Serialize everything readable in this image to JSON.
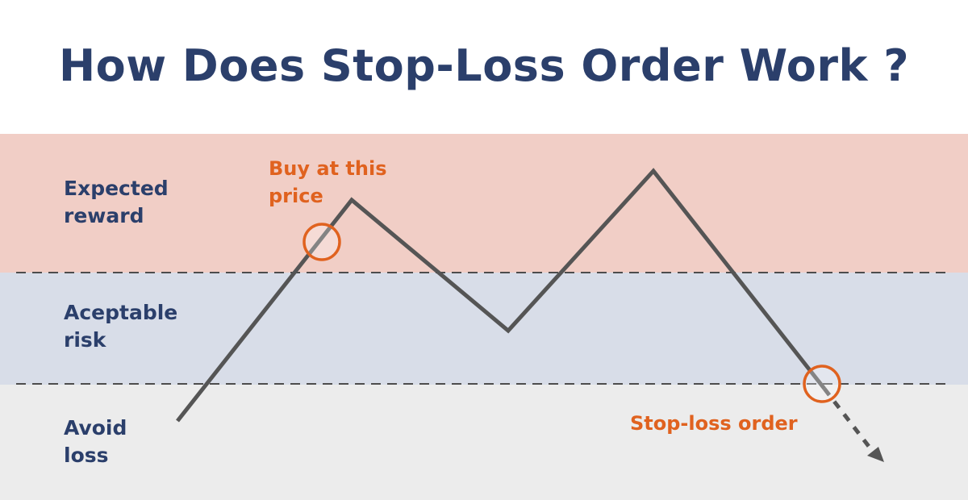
{
  "title": "How Does Stop-Loss Order Work ?",
  "zones": {
    "reward_label": "Expected\nreward",
    "risk_label": "Aceptable\nrisk",
    "loss_label": "Avoid\nloss"
  },
  "annotations": {
    "buy_label": "Buy at this\nprice",
    "stop_loss_label": "Stop-loss order"
  },
  "colors": {
    "title": "#2b3f6b",
    "reward_band": "#f1cec6",
    "risk_band": "#d8dde8",
    "loss_band": "#ececec",
    "price_line": "#555555",
    "marker": "#e0621f"
  }
}
